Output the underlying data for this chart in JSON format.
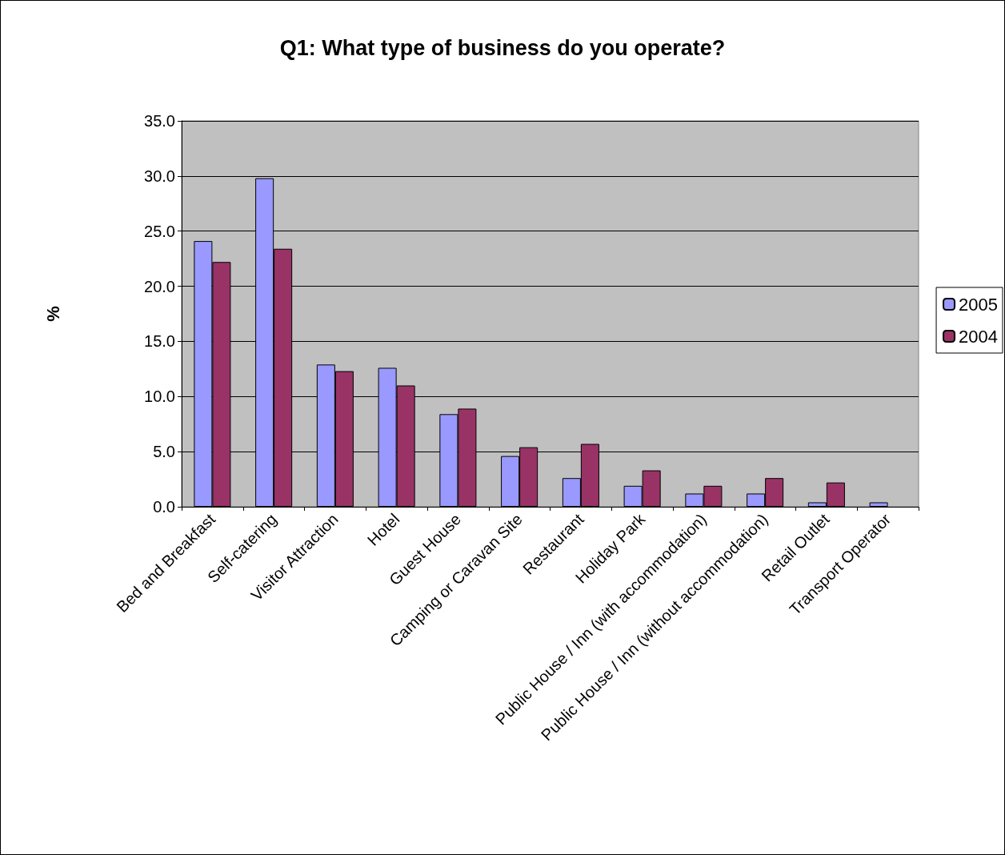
{
  "chart_data": {
    "type": "bar",
    "title": "Q1: What type of business do you operate?",
    "ylabel": "%",
    "categories": [
      "Bed and Breakfast",
      "Self-catering",
      "Visitor Attraction",
      "Hotel",
      "Guest House",
      "Camping or Caravan Site",
      "Restaurant",
      "Holiday Park",
      "Public House / Inn (with accommodation)",
      "Public House / Inn (without accommodation)",
      "Retail Outlet",
      "Transport Operator"
    ],
    "series": [
      {
        "name": "2005",
        "color": "#9999ff",
        "values": [
          24.1,
          29.8,
          12.9,
          12.6,
          8.4,
          4.6,
          2.6,
          1.9,
          1.2,
          1.2,
          0.4,
          0.4
        ]
      },
      {
        "name": "2004",
        "color": "#993366",
        "values": [
          22.2,
          23.4,
          12.3,
          11.0,
          8.9,
          5.4,
          5.7,
          3.3,
          1.9,
          2.6,
          2.2,
          null
        ]
      }
    ],
    "ylim": [
      0,
      35
    ],
    "yticks": [
      {
        "value": 0,
        "label": "0.0"
      },
      {
        "value": 5,
        "label": "5.0"
      },
      {
        "value": 10,
        "label": "10.0"
      },
      {
        "value": 15,
        "label": "15.0"
      },
      {
        "value": 20,
        "label": "20.0"
      },
      {
        "value": 25,
        "label": "25.0"
      },
      {
        "value": 30,
        "label": "30.0"
      },
      {
        "value": 35,
        "label": "35.0"
      }
    ],
    "grid": "y",
    "legend": "right"
  }
}
